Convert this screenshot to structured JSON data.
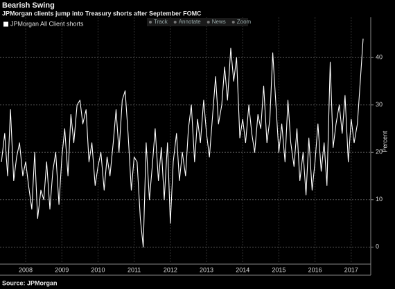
{
  "toolbar": [
    "Track",
    "Annotate",
    "News",
    "Zoom"
  ],
  "chart_data": {
    "type": "line",
    "title": "Bearish Swing",
    "subtitle": "JPMorgan clients jump into Treasury shorts after September FOMC",
    "source": "Source: JPMorgan",
    "y_label": "Percent",
    "x": [
      2007.83,
      2007.92,
      2008.0,
      2008.08,
      2008.17,
      2008.25,
      2008.33,
      2008.42,
      2008.5,
      2008.58,
      2008.67,
      2008.75,
      2008.83,
      2008.92,
      2009.0,
      2009.08,
      2009.17,
      2009.25,
      2009.33,
      2009.42,
      2009.5,
      2009.58,
      2009.67,
      2009.75,
      2009.83,
      2009.92,
      2010.0,
      2010.08,
      2010.17,
      2010.25,
      2010.33,
      2010.42,
      2010.5,
      2010.58,
      2010.67,
      2010.75,
      2010.83,
      2010.92,
      2011.0,
      2011.08,
      2011.17,
      2011.25,
      2011.33,
      2011.42,
      2011.5,
      2011.58,
      2011.67,
      2011.75,
      2011.83,
      2011.92,
      2012.0,
      2012.08,
      2012.17,
      2012.25,
      2012.33,
      2012.42,
      2012.5,
      2012.58,
      2012.67,
      2012.75,
      2012.83,
      2012.92,
      2013.0,
      2013.08,
      2013.17,
      2013.25,
      2013.33,
      2013.42,
      2013.5,
      2013.58,
      2013.67,
      2013.75,
      2013.83,
      2013.92,
      2014.0,
      2014.08,
      2014.17,
      2014.25,
      2014.33,
      2014.42,
      2014.5,
      2014.58,
      2014.67,
      2014.75,
      2014.83,
      2014.92,
      2015.0,
      2015.08,
      2015.17,
      2015.25,
      2015.33,
      2015.42,
      2015.5,
      2015.58,
      2015.67,
      2015.75,
      2015.83,
      2015.92,
      2016.0,
      2016.08,
      2016.17,
      2016.25,
      2016.33,
      2016.42,
      2016.5,
      2016.58,
      2016.67,
      2016.75,
      2016.83,
      2016.92,
      2017.0,
      2017.08,
      2017.17,
      2017.25,
      2017.33,
      2017.42,
      2017.5,
      2017.58,
      2017.67,
      2017.75,
      2017.83
    ],
    "series": [
      {
        "name": "JPMorgan All Client shorts",
        "color": "#ffffff",
        "values": [
          18,
          24,
          15,
          29,
          14,
          19,
          22,
          15,
          18,
          13,
          8,
          20,
          6,
          12,
          10,
          18,
          8,
          16,
          20,
          9,
          19,
          25,
          15,
          28,
          22,
          30,
          31,
          26,
          29,
          18,
          22,
          13,
          17,
          20,
          12,
          19,
          15,
          22,
          29,
          20,
          31,
          33,
          24,
          12,
          19,
          18,
          6,
          0,
          22,
          10,
          17,
          25,
          14,
          21,
          10,
          22,
          5,
          18,
          24,
          14,
          20,
          15,
          25,
          30,
          18,
          27,
          22,
          31,
          24,
          19,
          28,
          36,
          26,
          30,
          38,
          31,
          42,
          35,
          40,
          23,
          27,
          22,
          30,
          24,
          20,
          28,
          25,
          34,
          22,
          27,
          41,
          30,
          20,
          26,
          18,
          31,
          22,
          17,
          25,
          14,
          20,
          11,
          23,
          12,
          18,
          26,
          16,
          22,
          13,
          39,
          21,
          26,
          30,
          24,
          32,
          18,
          27,
          22,
          26,
          35,
          44
        ]
      }
    ],
    "xlim": [
      2007.79,
      2018.04
    ],
    "ylim": [
      -3.6,
      48.5
    ],
    "xticks": [
      {
        "value": 2008.5,
        "label": "2008"
      },
      {
        "value": 2009.5,
        "label": "2009"
      },
      {
        "value": 2010.5,
        "label": "2010"
      },
      {
        "value": 2011.5,
        "label": "2011"
      },
      {
        "value": 2012.5,
        "label": "2012"
      },
      {
        "value": 2013.5,
        "label": "2013"
      },
      {
        "value": 2014.5,
        "label": "2014"
      },
      {
        "value": 2015.5,
        "label": "2015"
      },
      {
        "value": 2016.5,
        "label": "2016"
      },
      {
        "value": 2017.5,
        "label": "2017"
      }
    ],
    "yticks": [
      0,
      10,
      20,
      30,
      40
    ],
    "grid": true,
    "legend": "top-left"
  }
}
